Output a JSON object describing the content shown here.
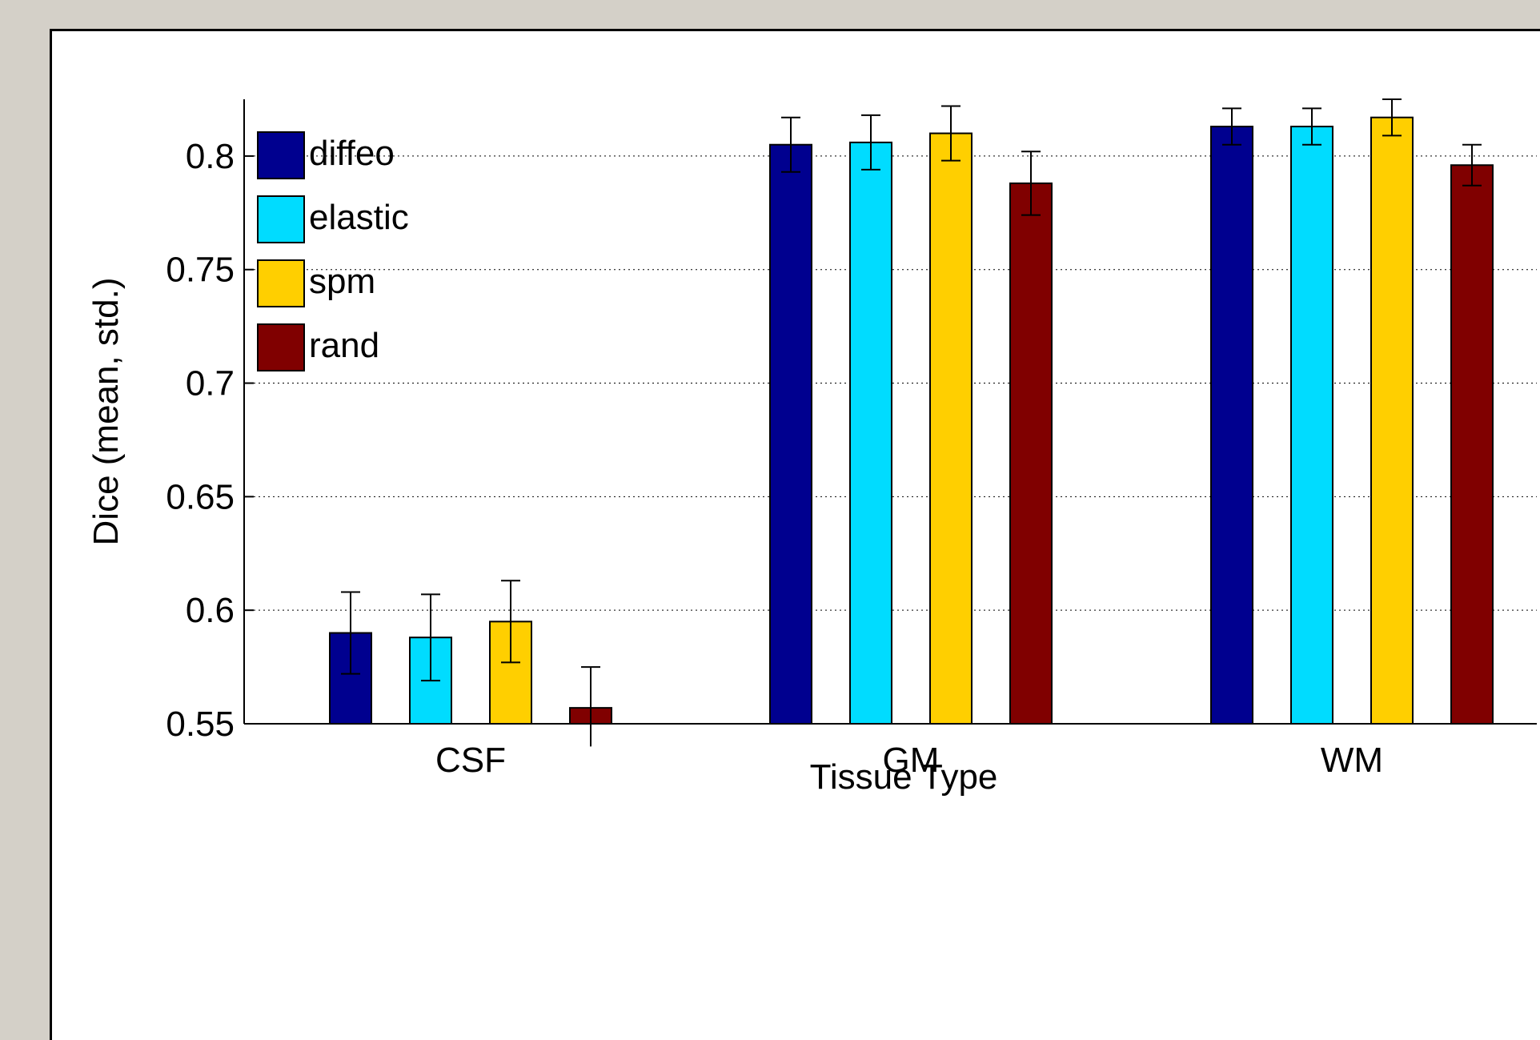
{
  "chart_data": {
    "type": "bar",
    "xlabel": "Tissue Type",
    "ylabel": "Dice (mean, std.)",
    "categories": [
      "CSF",
      "GM",
      "WM"
    ],
    "ylim": [
      0.55,
      0.825
    ],
    "yticks": [
      0.55,
      0.6,
      0.65,
      0.7,
      0.75,
      0.8
    ],
    "ytick_labels": [
      "0.55",
      "0.6",
      "0.65",
      "0.7",
      "0.75",
      "0.8"
    ],
    "grid": "horizontal dotted",
    "legend_position": "top-left",
    "series": [
      {
        "name": "diffeo",
        "color": "#00008f",
        "values": [
          0.59,
          0.805,
          0.813
        ],
        "errors": [
          0.018,
          0.012,
          0.008
        ]
      },
      {
        "name": "elastic",
        "color": "#00dcff",
        "values": [
          0.588,
          0.806,
          0.813
        ],
        "errors": [
          0.019,
          0.012,
          0.008
        ]
      },
      {
        "name": "spm",
        "color": "#ffcf00",
        "values": [
          0.595,
          0.81,
          0.817
        ],
        "errors": [
          0.018,
          0.012,
          0.008
        ]
      },
      {
        "name": "rand",
        "color": "#800000",
        "values": [
          0.557,
          0.788,
          0.796
        ],
        "errors": [
          0.018,
          0.014,
          0.009
        ]
      }
    ]
  }
}
